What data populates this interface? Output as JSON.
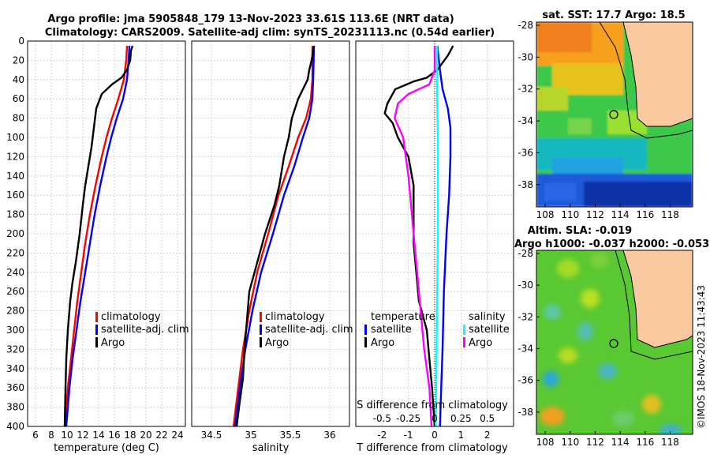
{
  "header": {
    "title_line1": "Argo profile: jma 5905848_179 13-Nov-2023 33.61S 113.6E (NRT data)",
    "title_line2": "Climatology: CARS2009. Satellite-adj clim: synTS_20231113.nc (0.54d earlier)"
  },
  "colors": {
    "climatology": "#ff0000",
    "satellite": "#0000ff",
    "argo": "#000000",
    "sat_salinity": "#00ffff",
    "argo_salinity": "#ff00ff"
  },
  "chart_data": [
    {
      "type": "line",
      "name": "temperature-profile",
      "xlabel": "temperature (deg C)",
      "ylim": [
        0,
        400
      ],
      "xlim": [
        5,
        25
      ],
      "xticks": [
        6,
        8,
        10,
        12,
        14,
        16,
        18,
        20,
        22,
        24
      ],
      "yticks": [
        0,
        20,
        40,
        60,
        80,
        100,
        120,
        140,
        160,
        180,
        200,
        220,
        240,
        260,
        280,
        300,
        320,
        340,
        360,
        380,
        400
      ],
      "legend": [
        "climatology",
        "satellite-adj. clim",
        "Argo"
      ],
      "series": [
        {
          "name": "climatology",
          "color": "#ff0000",
          "depth": [
            5,
            20,
            40,
            60,
            80,
            100,
            120,
            150,
            180,
            210,
            240,
            270,
            300,
            330,
            360,
            400
          ],
          "values": [
            17.6,
            17.5,
            17.2,
            16.5,
            15.7,
            15.0,
            14.4,
            13.6,
            12.9,
            12.3,
            11.8,
            11.3,
            10.9,
            10.5,
            10.1,
            9.7
          ]
        },
        {
          "name": "satellite-adj. clim",
          "color": "#0000ff",
          "depth": [
            5,
            20,
            40,
            60,
            80,
            100,
            120,
            150,
            180,
            210,
            240,
            270,
            300,
            330,
            360,
            400
          ],
          "values": [
            17.9,
            17.8,
            17.6,
            17.1,
            16.3,
            15.6,
            15.0,
            14.2,
            13.5,
            12.9,
            12.3,
            11.7,
            11.2,
            10.7,
            10.3,
            9.9
          ]
        },
        {
          "name": "Argo",
          "color": "#000000",
          "depth": [
            5,
            10,
            20,
            30,
            38,
            45,
            55,
            70,
            90,
            110,
            130,
            150,
            170,
            200,
            230,
            250,
            270,
            300,
            330,
            360,
            400
          ],
          "values": [
            18.3,
            18.1,
            18.0,
            17.6,
            16.9,
            15.7,
            14.4,
            13.7,
            13.4,
            13.1,
            12.7,
            12.3,
            12.0,
            11.6,
            11.1,
            10.7,
            10.4,
            10.1,
            9.9,
            9.8,
            9.7
          ]
        }
      ]
    },
    {
      "type": "line",
      "name": "salinity-profile",
      "xlabel": "salinity",
      "ylim": [
        0,
        400
      ],
      "xlim": [
        34.25,
        36.25
      ],
      "xticks": [
        "34.5",
        "35",
        "35.5",
        "36"
      ],
      "legend": [
        "climatology",
        "satellite-adj. clim",
        "Argo"
      ],
      "series": [
        {
          "name": "climatology",
          "color": "#ff0000",
          "depth": [
            5,
            40,
            60,
            80,
            100,
            130,
            160,
            200,
            240,
            280,
            320,
            360,
            400
          ],
          "values": [
            35.78,
            35.78,
            35.76,
            35.7,
            35.6,
            35.48,
            35.35,
            35.22,
            35.08,
            34.98,
            34.9,
            34.84,
            34.78
          ]
        },
        {
          "name": "satellite-adj. clim",
          "color": "#0000ff",
          "depth": [
            5,
            40,
            60,
            80,
            100,
            130,
            160,
            200,
            240,
            280,
            320,
            360,
            400
          ],
          "values": [
            35.8,
            35.79,
            35.78,
            35.74,
            35.66,
            35.55,
            35.42,
            35.28,
            35.13,
            35.02,
            34.93,
            34.86,
            34.8
          ]
        },
        {
          "name": "Argo",
          "color": "#000000",
          "depth": [
            5,
            20,
            30,
            40,
            50,
            60,
            70,
            80,
            100,
            120,
            150,
            170,
            200,
            230,
            260,
            290,
            320,
            350,
            380,
            400
          ],
          "values": [
            35.8,
            35.77,
            35.74,
            35.72,
            35.66,
            35.6,
            35.56,
            35.52,
            35.48,
            35.42,
            35.36,
            35.3,
            35.18,
            35.08,
            34.98,
            34.95,
            34.92,
            34.9,
            34.85,
            34.82
          ]
        }
      ]
    },
    {
      "type": "line",
      "name": "difference-profile",
      "xlabel": "T difference from climatology",
      "xlabel_top": "S difference from climatology",
      "ylim": [
        0,
        400
      ],
      "xlim": [
        -3,
        3
      ],
      "xticks": [
        "-2",
        "-1",
        "0",
        "1",
        "2"
      ],
      "xticks_top": [
        "-0.5",
        "-0.25",
        "0",
        "0.25",
        "0.5"
      ],
      "legend_temperature": [
        "temperature",
        "satellite",
        "Argo"
      ],
      "legend_salinity": [
        "salinity",
        "satellite",
        "Argo"
      ],
      "series": [
        {
          "name": "T satellite",
          "color": "#0000ff",
          "depth": [
            5,
            30,
            50,
            70,
            90,
            120,
            160,
            200,
            260,
            320,
            360,
            400
          ],
          "values": [
            0.1,
            0.2,
            0.3,
            0.5,
            0.6,
            0.6,
            0.55,
            0.45,
            0.35,
            0.3,
            0.25,
            0.2
          ]
        },
        {
          "name": "T Argo",
          "color": "#000000",
          "depth": [
            5,
            15,
            30,
            38,
            42,
            50,
            65,
            75,
            85,
            100,
            120,
            150,
            180,
            210,
            240,
            270,
            300,
            330,
            360,
            400
          ],
          "values": [
            0.7,
            0.5,
            0.1,
            -0.3,
            -0.8,
            -1.5,
            -1.8,
            -1.9,
            -1.6,
            -1.4,
            -1.0,
            -0.8,
            -0.8,
            -0.8,
            -0.7,
            -0.6,
            -0.3,
            -0.2,
            -0.1,
            0.0
          ]
        },
        {
          "name": "S satellite",
          "color": "#00ffff",
          "depth": [
            5,
            40,
            100,
            200,
            300,
            400
          ],
          "values": [
            0.02,
            0.02,
            0.03,
            0.03,
            0.02,
            0.01
          ]
        },
        {
          "name": "S Argo",
          "color": "#ff00ff",
          "depth": [
            5,
            30,
            45,
            55,
            65,
            80,
            100,
            140,
            200,
            260,
            320,
            360,
            400
          ],
          "values": [
            0.0,
            0.0,
            -0.05,
            -0.25,
            -0.35,
            -0.38,
            -0.3,
            -0.25,
            -0.2,
            -0.15,
            -0.1,
            -0.05,
            -0.03
          ]
        }
      ]
    },
    {
      "type": "heatmap",
      "name": "sst-map",
      "title": "sat. SST: 17.7 Argo: 18.5",
      "xticks": [
        "108",
        "110",
        "112",
        "114",
        "116",
        "118"
      ],
      "yticks": [
        "-28",
        "-30",
        "-32",
        "-34",
        "-36",
        "-38"
      ],
      "marker": {
        "lon": 113.6,
        "lat": -33.61
      }
    },
    {
      "type": "heatmap",
      "name": "sla-map",
      "title_line1": "Altim. SLA: -0.019",
      "title_line2": "Argo h1000: -0.037 h2000: -0.053",
      "xticks": [
        "108",
        "110",
        "112",
        "114",
        "116",
        "118"
      ],
      "yticks": [
        "-28",
        "-30",
        "-32",
        "-34",
        "-36",
        "-38"
      ],
      "marker": {
        "lon": 113.6,
        "lat": -33.61
      }
    }
  ],
  "footer": {
    "watermark": "©IMOS 18-Nov-2023 11:43:43"
  }
}
